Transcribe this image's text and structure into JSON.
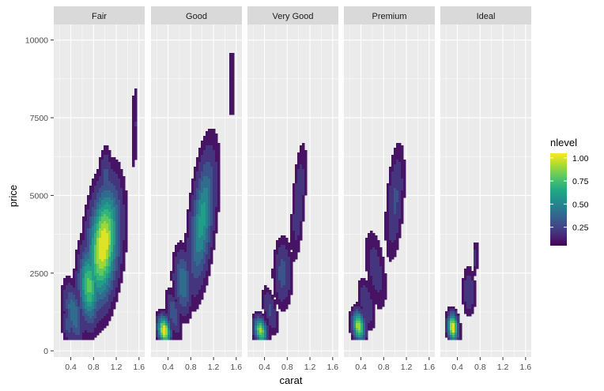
{
  "chart_data": {
    "type": "density_2d_filled",
    "facet_by": "cut",
    "facets": [
      {
        "label": "Fair",
        "blobs": [
          {
            "cx": 0.97,
            "cy": 3400,
            "rx": 0.22,
            "ry": 2000,
            "rot": -0.8,
            "z": 1.0
          },
          {
            "cx": 0.72,
            "cy": 2100,
            "rx": 0.18,
            "ry": 1100,
            "rot": -0.7,
            "z": 0.75
          },
          {
            "cx": 0.45,
            "cy": 1200,
            "rx": 0.18,
            "ry": 700,
            "rot": -0.6,
            "z": 0.4
          },
          {
            "cx": 0.35,
            "cy": 800,
            "rx": 0.12,
            "ry": 450,
            "rot": -0.3,
            "z": 0.25
          },
          {
            "cx": 1.01,
            "cy": 5500,
            "rx": 0.11,
            "ry": 900,
            "rot": -0.2,
            "z": 0.25
          },
          {
            "cx": 1.52,
            "cy": 7200,
            "rx": 0.05,
            "ry": 1400,
            "rot": -0.05,
            "z": 0.12
          }
        ]
      },
      {
        "label": "Good",
        "blobs": [
          {
            "cx": 1.0,
            "cy": 4200,
            "rx": 0.17,
            "ry": 2200,
            "rot": -0.5,
            "z": 0.55
          },
          {
            "cx": 0.66,
            "cy": 2200,
            "rx": 0.16,
            "ry": 900,
            "rot": -0.7,
            "z": 0.4
          },
          {
            "cx": 0.33,
            "cy": 650,
            "rx": 0.11,
            "ry": 420,
            "rot": -0.2,
            "z": 1.0
          },
          {
            "cx": 0.5,
            "cy": 1200,
            "rx": 0.14,
            "ry": 500,
            "rot": -0.6,
            "z": 0.3
          },
          {
            "cx": 1.52,
            "cy": 8600,
            "rx": 0.04,
            "ry": 1300,
            "rot": 0.0,
            "z": 0.12
          }
        ]
      },
      {
        "label": "Very Good",
        "blobs": [
          {
            "cx": 0.33,
            "cy": 650,
            "rx": 0.11,
            "ry": 380,
            "rot": -0.2,
            "z": 0.85
          },
          {
            "cx": 0.72,
            "cy": 2500,
            "rx": 0.15,
            "ry": 1000,
            "rot": -0.7,
            "z": 0.25
          },
          {
            "cx": 1.0,
            "cy": 4800,
            "rx": 0.1,
            "ry": 1800,
            "rot": -0.3,
            "z": 0.18
          },
          {
            "cx": 0.5,
            "cy": 1300,
            "rx": 0.14,
            "ry": 500,
            "rot": -0.6,
            "z": 0.22
          }
        ]
      },
      {
        "label": "Premium",
        "blobs": [
          {
            "cx": 0.36,
            "cy": 800,
            "rx": 0.11,
            "ry": 450,
            "rot": -0.2,
            "z": 0.9
          },
          {
            "cx": 1.0,
            "cy": 4800,
            "rx": 0.13,
            "ry": 1700,
            "rot": -0.35,
            "z": 0.22
          },
          {
            "cx": 0.66,
            "cy": 2600,
            "rx": 0.22,
            "ry": 900,
            "rot": -0.8,
            "z": 0.15
          },
          {
            "cx": 0.5,
            "cy": 1500,
            "rx": 0.15,
            "ry": 600,
            "rot": -0.6,
            "z": 0.2
          }
        ]
      },
      {
        "label": "Ideal",
        "blobs": [
          {
            "cx": 0.32,
            "cy": 750,
            "rx": 0.09,
            "ry": 420,
            "rot": -0.2,
            "z": 1.0
          },
          {
            "cx": 0.6,
            "cy": 1900,
            "rx": 0.11,
            "ry": 700,
            "rot": -0.7,
            "z": 0.2
          },
          {
            "cx": 0.72,
            "cy": 3000,
            "rx": 0.04,
            "ry": 550,
            "rot": -0.1,
            "z": 0.15
          }
        ]
      }
    ],
    "x": {
      "label": "carat",
      "range": [
        0.1,
        1.7
      ],
      "ticks": [
        0.4,
        0.8,
        1.2,
        1.6
      ],
      "tick_labels": [
        "0.4",
        "0.8",
        "1.2",
        "1.6"
      ]
    },
    "y": {
      "label": "price",
      "range": [
        -200,
        10500
      ],
      "ticks": [
        0,
        2500,
        5000,
        7500,
        10000
      ],
      "tick_labels": [
        "0",
        "2500",
        "5000",
        "7500",
        "10000"
      ]
    },
    "legend": {
      "title": "nlevel",
      "position": "right",
      "ticks": [
        0.25,
        0.5,
        0.75,
        1.0
      ],
      "tick_labels": [
        "0.25",
        "0.50",
        "0.75",
        "1.00"
      ],
      "range": [
        0.05,
        1.05
      ]
    },
    "colors": {
      "palette": "viridis",
      "stops": [
        "#440154",
        "#482475",
        "#414487",
        "#355f8d",
        "#2a788e",
        "#21918c",
        "#22a884",
        "#44bf70",
        "#7ad151",
        "#bddf26",
        "#fde725"
      ]
    },
    "grid": true
  }
}
